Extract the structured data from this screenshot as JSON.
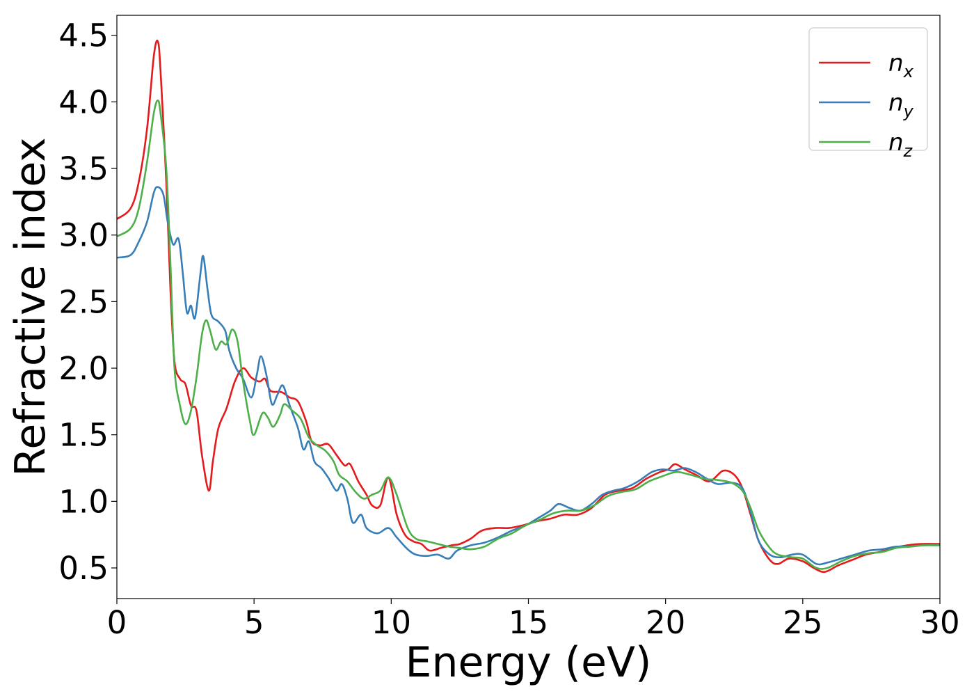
{
  "chart_data": {
    "type": "line",
    "title": "",
    "xlabel": "Energy (eV)",
    "ylabel": "Refractive index",
    "xlim": [
      0,
      30
    ],
    "ylim": [
      0.27,
      4.65
    ],
    "xticks": [
      0,
      5,
      10,
      15,
      20,
      25,
      30
    ],
    "yticks": [
      0.5,
      1.0,
      1.5,
      2.0,
      2.5,
      3.0,
      3.5,
      4.0,
      4.5
    ],
    "xtick_labels": [
      "0",
      "5",
      "10",
      "15",
      "20",
      "25",
      "30"
    ],
    "ytick_labels": [
      "0.5",
      "1.0",
      "1.5",
      "2.0",
      "2.5",
      "3.0",
      "3.5",
      "4.0",
      "4.5"
    ],
    "grid": false,
    "legend_position": "top-right",
    "series": [
      {
        "name": "n",
        "subscript": "x",
        "color": "#e41a1c",
        "points": [
          [
            0,
            3.12
          ],
          [
            0.5,
            3.2
          ],
          [
            0.8,
            3.4
          ],
          [
            1.1,
            3.8
          ],
          [
            1.35,
            4.35
          ],
          [
            1.5,
            4.45
          ],
          [
            1.6,
            4.2
          ],
          [
            1.8,
            3.4
          ],
          [
            1.95,
            2.6
          ],
          [
            2.1,
            2.05
          ],
          [
            2.3,
            1.92
          ],
          [
            2.5,
            1.88
          ],
          [
            2.7,
            1.72
          ],
          [
            2.9,
            1.68
          ],
          [
            3.1,
            1.35
          ],
          [
            3.35,
            1.08
          ],
          [
            3.5,
            1.3
          ],
          [
            3.7,
            1.55
          ],
          [
            4.0,
            1.7
          ],
          [
            4.3,
            1.9
          ],
          [
            4.6,
            2.0
          ],
          [
            4.9,
            1.93
          ],
          [
            5.2,
            1.9
          ],
          [
            5.4,
            1.92
          ],
          [
            5.6,
            1.83
          ],
          [
            6.0,
            1.82
          ],
          [
            6.3,
            1.78
          ],
          [
            6.6,
            1.75
          ],
          [
            6.9,
            1.6
          ],
          [
            7.1,
            1.45
          ],
          [
            7.4,
            1.42
          ],
          [
            7.7,
            1.43
          ],
          [
            8.0,
            1.35
          ],
          [
            8.3,
            1.27
          ],
          [
            8.5,
            1.28
          ],
          [
            8.8,
            1.15
          ],
          [
            9.1,
            1.05
          ],
          [
            9.3,
            0.97
          ],
          [
            9.6,
            0.97
          ],
          [
            9.9,
            1.18
          ],
          [
            10.2,
            0.9
          ],
          [
            10.5,
            0.75
          ],
          [
            10.8,
            0.7
          ],
          [
            11.1,
            0.68
          ],
          [
            11.4,
            0.63
          ],
          [
            11.8,
            0.65
          ],
          [
            12.2,
            0.67
          ],
          [
            12.5,
            0.68
          ],
          [
            12.9,
            0.72
          ],
          [
            13.3,
            0.78
          ],
          [
            13.8,
            0.8
          ],
          [
            14.3,
            0.8
          ],
          [
            14.8,
            0.82
          ],
          [
            15.3,
            0.85
          ],
          [
            15.8,
            0.87
          ],
          [
            16.3,
            0.9
          ],
          [
            16.8,
            0.9
          ],
          [
            17.3,
            0.95
          ],
          [
            17.8,
            1.05
          ],
          [
            18.3,
            1.08
          ],
          [
            18.8,
            1.1
          ],
          [
            19.3,
            1.17
          ],
          [
            19.8,
            1.22
          ],
          [
            20.1,
            1.24
          ],
          [
            20.35,
            1.28
          ],
          [
            20.7,
            1.24
          ],
          [
            21.1,
            1.2
          ],
          [
            21.6,
            1.15
          ],
          [
            22.1,
            1.23
          ],
          [
            22.5,
            1.2
          ],
          [
            22.8,
            1.1
          ],
          [
            23.1,
            0.9
          ],
          [
            23.4,
            0.7
          ],
          [
            23.8,
            0.56
          ],
          [
            24.1,
            0.53
          ],
          [
            24.5,
            0.57
          ],
          [
            25.0,
            0.55
          ],
          [
            25.4,
            0.5
          ],
          [
            25.8,
            0.47
          ],
          [
            26.3,
            0.52
          ],
          [
            26.8,
            0.56
          ],
          [
            27.3,
            0.6
          ],
          [
            27.8,
            0.62
          ],
          [
            28.3,
            0.65
          ],
          [
            28.8,
            0.67
          ],
          [
            29.3,
            0.68
          ],
          [
            30,
            0.68
          ]
        ]
      },
      {
        "name": "n",
        "subscript": "y",
        "color": "#377eb8",
        "points": [
          [
            0,
            2.83
          ],
          [
            0.5,
            2.85
          ],
          [
            0.8,
            2.95
          ],
          [
            1.1,
            3.1
          ],
          [
            1.35,
            3.32
          ],
          [
            1.5,
            3.36
          ],
          [
            1.7,
            3.3
          ],
          [
            1.85,
            3.1
          ],
          [
            2.05,
            2.93
          ],
          [
            2.25,
            2.97
          ],
          [
            2.4,
            2.72
          ],
          [
            2.55,
            2.42
          ],
          [
            2.7,
            2.47
          ],
          [
            2.85,
            2.38
          ],
          [
            3.05,
            2.72
          ],
          [
            3.15,
            2.84
          ],
          [
            3.3,
            2.6
          ],
          [
            3.45,
            2.4
          ],
          [
            3.7,
            2.35
          ],
          [
            3.95,
            2.28
          ],
          [
            4.1,
            2.13
          ],
          [
            4.35,
            2.0
          ],
          [
            4.6,
            1.92
          ],
          [
            4.9,
            1.78
          ],
          [
            5.1,
            1.95
          ],
          [
            5.25,
            2.09
          ],
          [
            5.45,
            1.95
          ],
          [
            5.65,
            1.73
          ],
          [
            5.85,
            1.8
          ],
          [
            6.05,
            1.87
          ],
          [
            6.3,
            1.72
          ],
          [
            6.6,
            1.55
          ],
          [
            6.8,
            1.39
          ],
          [
            7.0,
            1.45
          ],
          [
            7.2,
            1.3
          ],
          [
            7.45,
            1.25
          ],
          [
            7.7,
            1.18
          ],
          [
            8.0,
            1.08
          ],
          [
            8.2,
            1.13
          ],
          [
            8.4,
            1.02
          ],
          [
            8.6,
            0.84
          ],
          [
            8.9,
            0.9
          ],
          [
            9.1,
            0.8
          ],
          [
            9.5,
            0.76
          ],
          [
            9.9,
            0.8
          ],
          [
            10.2,
            0.73
          ],
          [
            10.6,
            0.64
          ],
          [
            10.9,
            0.6
          ],
          [
            11.3,
            0.59
          ],
          [
            11.7,
            0.6
          ],
          [
            12.1,
            0.57
          ],
          [
            12.4,
            0.63
          ],
          [
            12.9,
            0.67
          ],
          [
            13.4,
            0.69
          ],
          [
            13.9,
            0.73
          ],
          [
            14.4,
            0.78
          ],
          [
            14.9,
            0.82
          ],
          [
            15.4,
            0.88
          ],
          [
            15.8,
            0.93
          ],
          [
            16.1,
            0.98
          ],
          [
            16.5,
            0.95
          ],
          [
            16.9,
            0.93
          ],
          [
            17.3,
            0.98
          ],
          [
            17.7,
            1.05
          ],
          [
            18.1,
            1.08
          ],
          [
            18.5,
            1.1
          ],
          [
            19.0,
            1.15
          ],
          [
            19.5,
            1.22
          ],
          [
            19.9,
            1.24
          ],
          [
            20.3,
            1.23
          ],
          [
            20.7,
            1.25
          ],
          [
            21.1,
            1.22
          ],
          [
            21.5,
            1.17
          ],
          [
            21.9,
            1.13
          ],
          [
            22.4,
            1.14
          ],
          [
            22.8,
            1.1
          ],
          [
            23.1,
            0.92
          ],
          [
            23.4,
            0.7
          ],
          [
            23.8,
            0.6
          ],
          [
            24.2,
            0.58
          ],
          [
            24.6,
            0.6
          ],
          [
            25.0,
            0.6
          ],
          [
            25.5,
            0.53
          ],
          [
            25.9,
            0.54
          ],
          [
            26.4,
            0.57
          ],
          [
            26.9,
            0.6
          ],
          [
            27.4,
            0.63
          ],
          [
            27.9,
            0.64
          ],
          [
            28.4,
            0.66
          ],
          [
            28.9,
            0.66
          ],
          [
            29.4,
            0.67
          ],
          [
            30,
            0.67
          ]
        ]
      },
      {
        "name": "n",
        "subscript": "z",
        "color": "#4daf4a",
        "points": [
          [
            0,
            2.99
          ],
          [
            0.5,
            3.05
          ],
          [
            0.8,
            3.2
          ],
          [
            1.1,
            3.55
          ],
          [
            1.35,
            3.92
          ],
          [
            1.5,
            4.01
          ],
          [
            1.6,
            3.9
          ],
          [
            1.8,
            3.5
          ],
          [
            1.95,
            2.8
          ],
          [
            2.1,
            2.0
          ],
          [
            2.3,
            1.72
          ],
          [
            2.5,
            1.58
          ],
          [
            2.7,
            1.68
          ],
          [
            2.9,
            1.93
          ],
          [
            3.1,
            2.25
          ],
          [
            3.25,
            2.36
          ],
          [
            3.4,
            2.28
          ],
          [
            3.6,
            2.14
          ],
          [
            3.8,
            2.2
          ],
          [
            4.0,
            2.18
          ],
          [
            4.2,
            2.29
          ],
          [
            4.4,
            2.2
          ],
          [
            4.6,
            1.9
          ],
          [
            4.85,
            1.6
          ],
          [
            5.0,
            1.5
          ],
          [
            5.3,
            1.66
          ],
          [
            5.5,
            1.63
          ],
          [
            5.7,
            1.56
          ],
          [
            5.95,
            1.65
          ],
          [
            6.1,
            1.73
          ],
          [
            6.4,
            1.68
          ],
          [
            6.7,
            1.62
          ],
          [
            7.0,
            1.48
          ],
          [
            7.3,
            1.42
          ],
          [
            7.6,
            1.38
          ],
          [
            7.9,
            1.3
          ],
          [
            8.1,
            1.2
          ],
          [
            8.4,
            1.15
          ],
          [
            8.7,
            1.07
          ],
          [
            9.0,
            1.02
          ],
          [
            9.3,
            1.05
          ],
          [
            9.6,
            1.08
          ],
          [
            9.9,
            1.18
          ],
          [
            10.2,
            1.05
          ],
          [
            10.6,
            0.8
          ],
          [
            10.9,
            0.72
          ],
          [
            11.3,
            0.7
          ],
          [
            11.7,
            0.68
          ],
          [
            12.1,
            0.66
          ],
          [
            12.5,
            0.65
          ],
          [
            12.9,
            0.64
          ],
          [
            13.4,
            0.66
          ],
          [
            13.9,
            0.72
          ],
          [
            14.4,
            0.76
          ],
          [
            14.9,
            0.82
          ],
          [
            15.4,
            0.86
          ],
          [
            15.9,
            0.91
          ],
          [
            16.4,
            0.93
          ],
          [
            16.9,
            0.93
          ],
          [
            17.4,
            0.97
          ],
          [
            17.9,
            1.04
          ],
          [
            18.4,
            1.07
          ],
          [
            18.9,
            1.09
          ],
          [
            19.4,
            1.15
          ],
          [
            19.9,
            1.19
          ],
          [
            20.4,
            1.22
          ],
          [
            20.9,
            1.2
          ],
          [
            21.4,
            1.17
          ],
          [
            21.9,
            1.16
          ],
          [
            22.4,
            1.14
          ],
          [
            22.8,
            1.08
          ],
          [
            23.1,
            0.95
          ],
          [
            23.4,
            0.78
          ],
          [
            23.8,
            0.65
          ],
          [
            24.1,
            0.6
          ],
          [
            24.6,
            0.58
          ],
          [
            25.0,
            0.57
          ],
          [
            25.5,
            0.5
          ],
          [
            25.9,
            0.5
          ],
          [
            26.4,
            0.55
          ],
          [
            26.9,
            0.59
          ],
          [
            27.4,
            0.61
          ],
          [
            27.9,
            0.62
          ],
          [
            28.4,
            0.65
          ],
          [
            28.9,
            0.66
          ],
          [
            29.4,
            0.67
          ],
          [
            30,
            0.67
          ]
        ]
      }
    ]
  }
}
